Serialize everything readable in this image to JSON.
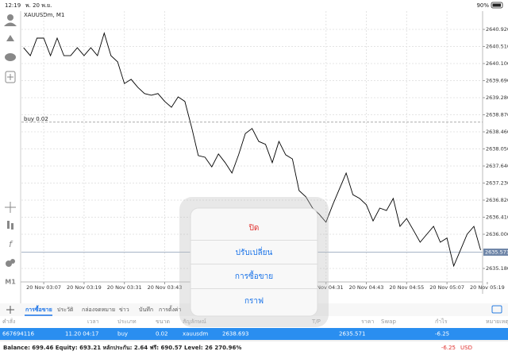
{
  "status_bar": {
    "time": "12:19",
    "date": "พ. 20 พ.ย.",
    "battery": "90%"
  },
  "chart_data": {
    "type": "line",
    "title": "XAUUSDm, M1",
    "timeframe": "M1",
    "x": [
      181,
      183,
      185,
      187,
      189,
      191,
      193,
      195,
      197,
      199,
      201,
      203,
      205,
      207,
      209,
      211,
      213,
      215,
      217,
      219,
      221,
      223,
      225,
      227,
      229,
      231,
      233,
      235,
      237,
      239,
      241,
      243,
      245,
      247,
      249,
      251,
      253,
      255,
      257,
      259,
      261,
      263,
      265,
      267,
      269,
      271,
      273,
      275,
      277,
      279,
      281,
      283,
      285,
      287,
      289,
      291,
      293,
      295,
      297,
      299,
      301,
      303,
      305,
      307,
      309,
      311,
      313,
      315,
      317
    ],
    "series": [
      {
        "color": "#000000",
        "values": [
          2640.48,
          2640.29,
          2640.71,
          2640.71,
          2640.29,
          2640.71,
          2640.29,
          2640.29,
          2640.48,
          2640.29,
          2640.48,
          2640.29,
          2640.83,
          2640.29,
          2640.14,
          2639.62,
          2639.72,
          2639.53,
          2639.38,
          2639.34,
          2639.38,
          2639.19,
          2639.05,
          2639.3,
          2639.19,
          2638.57,
          2637.89,
          2637.85,
          2637.62,
          2637.93,
          2637.72,
          2637.47,
          2637.91,
          2638.42,
          2638.54,
          2638.23,
          2638.16,
          2637.72,
          2638.23,
          2637.91,
          2637.81,
          2637.05,
          2636.9,
          2636.63,
          2636.48,
          2636.29,
          2636.71,
          2637.09,
          2637.47,
          2636.95,
          2636.86,
          2636.71,
          2636.32,
          2636.63,
          2636.57,
          2636.86,
          2636.19,
          2636.38,
          2636.1,
          2635.81,
          2636.0,
          2636.19,
          2635.81,
          2635.91,
          2635.24,
          2635.62,
          2636.0,
          2636.19,
          2635.62
        ]
      }
    ],
    "xlim": [
      180.6,
      317.6
    ],
    "ylim": [
      2634.856,
      2641.359
    ],
    "xticks": [
      {
        "value": 187,
        "label": "20 Nov 03:07"
      },
      {
        "value": 199,
        "label": "20 Nov 03:19"
      },
      {
        "value": 211,
        "label": "20 Nov 03:31"
      },
      {
        "value": 223,
        "label": "20 Nov 03:43"
      },
      {
        "value": 271,
        "label": "20 Nov 04:31"
      },
      {
        "value": 283,
        "label": "20 Nov 04:43"
      },
      {
        "value": 295,
        "label": "20 Nov 04:55"
      },
      {
        "value": 307,
        "label": "20 Nov 05:07"
      },
      {
        "value": 319,
        "label": "20 Nov 05:19"
      }
    ],
    "yticks": [
      {
        "value": 2640.92,
        "label": "2640.920"
      },
      {
        "value": 2640.51,
        "label": "2640.510"
      },
      {
        "value": 2640.1,
        "label": "2640.100"
      },
      {
        "value": 2639.69,
        "label": "2639.690"
      },
      {
        "value": 2639.28,
        "label": "2639.280"
      },
      {
        "value": 2638.87,
        "label": "2638.870"
      },
      {
        "value": 2638.46,
        "label": "2638.460"
      },
      {
        "value": 2638.05,
        "label": "2638.050"
      },
      {
        "value": 2637.64,
        "label": "2637.640"
      },
      {
        "value": 2637.23,
        "label": "2637.230"
      },
      {
        "value": 2636.82,
        "label": "2636.820"
      },
      {
        "value": 2636.41,
        "label": "2636.410"
      },
      {
        "value": 2636.0,
        "label": "2636.000"
      },
      {
        "value": 2635.18,
        "label": "2635.180"
      }
    ],
    "grid": true,
    "order_label": "buy 0.02",
    "last_price": 2635.571
  },
  "tabs": [
    "การซื้อขาย",
    "ประวัติ",
    "กล่องจดหมาย",
    "ข่าว",
    "บันทึก",
    "การตั้งค่า"
  ],
  "table": {
    "columns": [
      "คำสั่ง",
      "เวลา",
      "ประเภท",
      "ขนาด",
      "สัญลักษณ์",
      "T/P",
      "ราคา",
      "Swap",
      "กำไร",
      "หมายเหตุ"
    ],
    "row": {
      "ticket": 667694116,
      "time": "11.20 04:17",
      "type": "buy",
      "volume": 0.02,
      "symbol": "xauusdm",
      "open_price": 2638.693,
      "price": 2635.571,
      "profit": -6.25
    }
  },
  "footer": {
    "summary": "Balance: 699.46 Equity: 693.21 หลักประกัน: 2.64 ฟรี: 690.57 Level: 26 270.96%",
    "profit": -6.25,
    "currency": "USD"
  },
  "menu": {
    "items": [
      "ปิด",
      "ปรับเปลี่ยน",
      "การซื้อขาย",
      "กราฟ"
    ]
  }
}
